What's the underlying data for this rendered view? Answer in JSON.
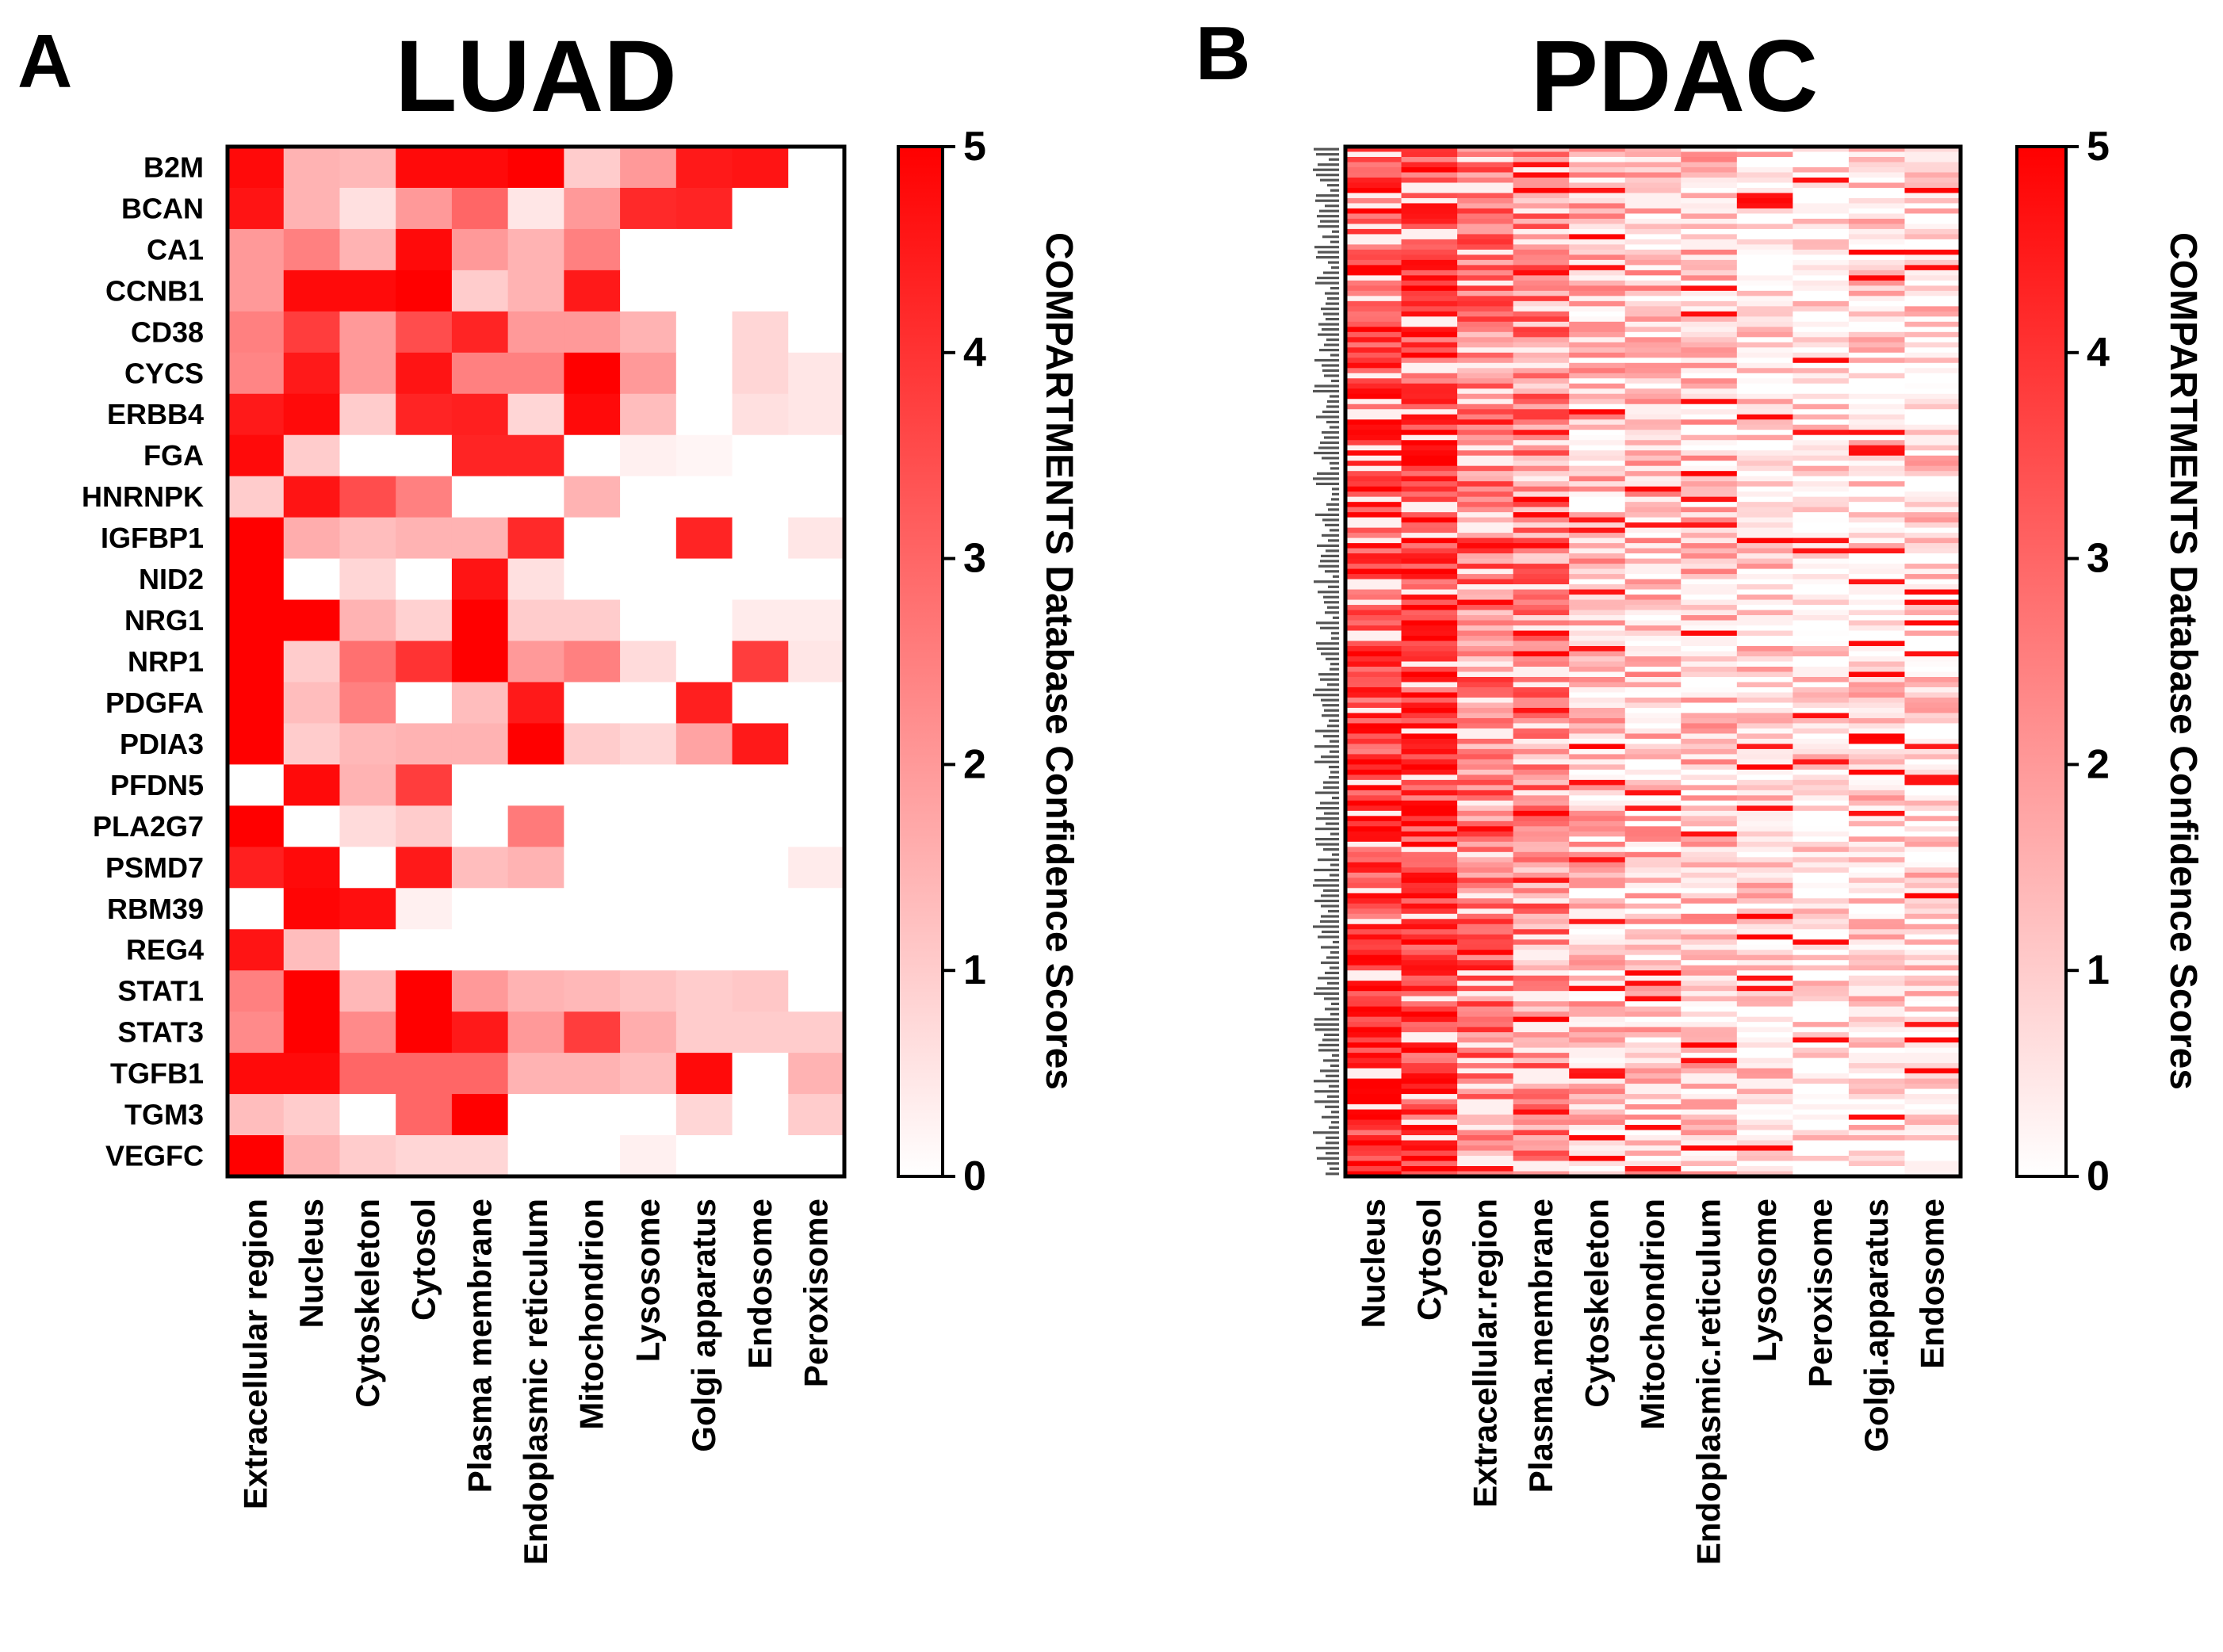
{
  "chart_data": [
    {
      "type": "heatmap",
      "panel": "A",
      "title": "LUAD",
      "rows": [
        "B2M",
        "BCAN",
        "CA1",
        "CCNB1",
        "CD38",
        "CYCS",
        "ERBB4",
        "FGA",
        "HNRNPK",
        "IGFBP1",
        "NID2",
        "NRG1",
        "NRP1",
        "PDGFA",
        "PDIA3",
        "PFDN5",
        "PLA2G7",
        "PSMD7",
        "RBM39",
        "REG4",
        "STAT1",
        "STAT3",
        "TGFB1",
        "TGM3",
        "VEGFC"
      ],
      "columns": [
        "Extracellular region",
        "Nucleus",
        "Cytoskeleton",
        "Cytosol",
        "Plasma membrane",
        "Endoplasmic reticulum",
        "Mitochondrion",
        "Lysosome",
        "Golgi apparatus",
        "Endosome",
        "Peroxisome"
      ],
      "values": [
        [
          4.8,
          1.5,
          1.4,
          4.8,
          4.8,
          5.0,
          1.0,
          2.0,
          4.5,
          4.6,
          0.0
        ],
        [
          4.6,
          1.5,
          0.6,
          2.0,
          3.0,
          0.5,
          2.0,
          4.2,
          4.3,
          0.0,
          0.0
        ],
        [
          2.0,
          2.5,
          1.5,
          4.8,
          2.0,
          1.5,
          2.5,
          0.0,
          0.0,
          0.0,
          0.0
        ],
        [
          2.0,
          4.8,
          4.8,
          5.0,
          1.0,
          1.5,
          4.5,
          0.0,
          0.0,
          0.0,
          0.0
        ],
        [
          2.5,
          3.8,
          2.0,
          3.5,
          4.3,
          2.0,
          2.0,
          1.5,
          0.0,
          0.8,
          0.0
        ],
        [
          2.4,
          4.5,
          2.0,
          4.6,
          2.5,
          2.5,
          5.0,
          2.0,
          0.0,
          0.8,
          0.5
        ],
        [
          4.5,
          4.8,
          1.0,
          4.3,
          4.4,
          0.8,
          4.8,
          1.3,
          0.0,
          0.6,
          0.5
        ],
        [
          4.8,
          1.0,
          0.0,
          0.0,
          4.3,
          4.3,
          0.0,
          0.3,
          0.2,
          0.0,
          0.0
        ],
        [
          1.0,
          4.6,
          3.5,
          2.5,
          0.0,
          0.0,
          1.5,
          0.0,
          0.0,
          0.0,
          0.0
        ],
        [
          5.0,
          1.6,
          1.3,
          1.5,
          1.5,
          4.2,
          0.0,
          0.0,
          4.3,
          0.0,
          0.5
        ],
        [
          5.0,
          0.0,
          0.8,
          0.0,
          4.6,
          0.6,
          0.0,
          0.0,
          0.0,
          0.0,
          0.0
        ],
        [
          5.0,
          5.0,
          1.5,
          0.9,
          5.0,
          1.0,
          1.0,
          0.0,
          0.0,
          0.4,
          0.4
        ],
        [
          5.0,
          1.0,
          2.8,
          4.0,
          5.0,
          2.0,
          2.5,
          0.7,
          0.0,
          3.8,
          0.5
        ],
        [
          5.0,
          1.3,
          2.5,
          0.0,
          1.3,
          4.5,
          0.0,
          0.0,
          4.4,
          0.0,
          0.0
        ],
        [
          5.0,
          1.0,
          1.4,
          1.5,
          1.5,
          5.0,
          1.0,
          0.8,
          1.8,
          4.5,
          0.0
        ],
        [
          0.0,
          4.8,
          1.5,
          3.8,
          0.0,
          0.0,
          0.0,
          0.0,
          0.0,
          0.0,
          0.0
        ],
        [
          5.0,
          0.0,
          0.7,
          1.0,
          0.0,
          2.6,
          0.0,
          0.0,
          0.0,
          0.0,
          0.0
        ],
        [
          4.4,
          4.8,
          0.0,
          4.5,
          1.3,
          1.5,
          0.0,
          0.0,
          0.0,
          0.0,
          0.4
        ],
        [
          0.0,
          4.9,
          4.7,
          0.3,
          0.0,
          0.0,
          0.0,
          0.0,
          0.0,
          0.0,
          0.0
        ],
        [
          4.6,
          1.3,
          0.0,
          0.0,
          0.0,
          0.0,
          0.0,
          0.0,
          0.0,
          0.0,
          0.0
        ],
        [
          2.5,
          5.0,
          1.4,
          5.0,
          2.0,
          1.5,
          1.4,
          1.2,
          1.0,
          1.1,
          0.0
        ],
        [
          2.3,
          5.0,
          2.3,
          5.0,
          4.5,
          2.0,
          3.8,
          1.6,
          1.0,
          1.0,
          1.0
        ],
        [
          4.8,
          4.8,
          3.0,
          3.0,
          3.0,
          1.5,
          1.5,
          1.3,
          4.8,
          0.0,
          1.5
        ],
        [
          1.3,
          1.0,
          0.0,
          3.0,
          5.0,
          0.0,
          0.0,
          0.0,
          0.8,
          0.0,
          1.0
        ],
        [
          5.0,
          1.5,
          1.0,
          0.8,
          0.8,
          0.0,
          0.0,
          0.3,
          0.0,
          0.0,
          0.0
        ]
      ],
      "colorbar": {
        "min": 0,
        "max": 5,
        "ticks": [
          "0",
          "1",
          "2",
          "3",
          "4",
          "5"
        ],
        "label": "COMPARTMENTS Database Confidence Scores"
      },
      "colors": {
        "low": "#ffffff",
        "high": "#ff0000"
      }
    },
    {
      "type": "heatmap",
      "panel": "B",
      "title": "PDAC",
      "columns": [
        "Nucleus",
        "Cytosol",
        "Extracellular.region",
        "Plasma.membrane",
        "Cytoskeleton",
        "Mitochondrion",
        "Endoplasmic.reticulum",
        "Lysosome",
        "Peroxisome",
        "Golgi.apparatus",
        "Endosome"
      ],
      "row_count": 200,
      "column_mean_scores": [
        4.0,
        3.9,
        2.6,
        2.3,
        1.1,
        1.1,
        1.0,
        0.6,
        0.3,
        0.6,
        0.6
      ],
      "colorbar": {
        "min": 0,
        "max": 5,
        "ticks": [
          "0",
          "1",
          "2",
          "3",
          "4",
          "5"
        ],
        "label": "COMPARTMENTS Database Confidence Scores"
      },
      "colors": {
        "low": "#ffffff",
        "high": "#ff0000"
      }
    }
  ]
}
